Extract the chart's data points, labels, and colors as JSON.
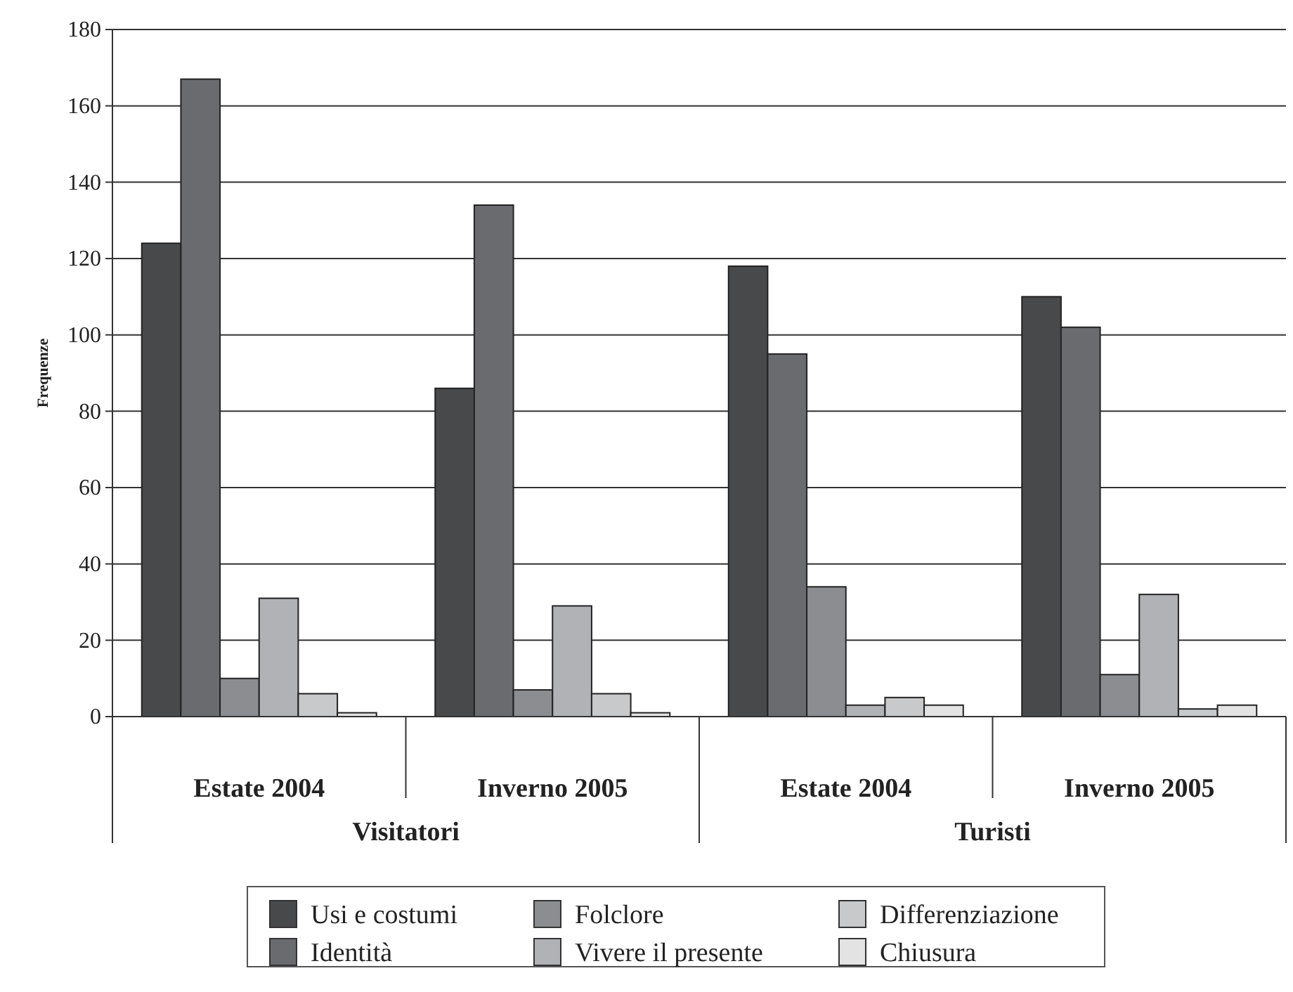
{
  "chart_data": {
    "type": "bar",
    "ylabel": "Frequenze",
    "categories": [
      "Estate 2004",
      "Inverno 2005",
      "Estate 2004",
      "Inverno 2005"
    ],
    "annotations": [
      "Visitatori",
      "Turisti"
    ],
    "series": [
      {
        "name": "Usi e costumi",
        "color": "#48494b",
        "values": [
          124,
          86,
          118,
          110
        ]
      },
      {
        "name": "Identità",
        "color": "#6a6b6f",
        "values": [
          167,
          134,
          95,
          102
        ]
      },
      {
        "name": "Folclore",
        "color": "#8c8d91",
        "values": [
          10,
          7,
          34,
          11
        ]
      },
      {
        "name": "Vivere il presente",
        "color": "#b1b2b5",
        "values": [
          31,
          29,
          3,
          32
        ]
      },
      {
        "name": "Differenziazione",
        "color": "#c8c9cb",
        "values": [
          6,
          6,
          5,
          2
        ]
      },
      {
        "name": "Chiusura",
        "color": "#e3e3e4",
        "values": [
          1,
          1,
          3,
          3
        ]
      }
    ],
    "ylim": [
      0,
      180
    ],
    "yticks": [
      0,
      20,
      40,
      60,
      80,
      100,
      120,
      140,
      160,
      180
    ],
    "grid": "y",
    "legend": "bottom"
  }
}
